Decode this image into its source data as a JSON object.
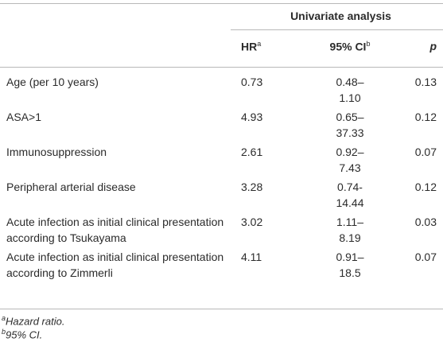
{
  "table": {
    "group_header": "Univariate analysis",
    "columns": [
      {
        "label": "HR",
        "note": "a"
      },
      {
        "label": "95% CI",
        "note": "b"
      },
      {
        "label": "p"
      }
    ],
    "rows": [
      {
        "label": "Age (per 10 years)",
        "hr": "0.73",
        "ci": [
          "0.48–",
          "1.10"
        ],
        "p": "0.13"
      },
      {
        "label": "ASA>1",
        "hr": "4.93",
        "ci": [
          "0.65–",
          "37.33"
        ],
        "p": "0.12"
      },
      {
        "label": "Immunosuppression",
        "hr": "2.61",
        "ci": [
          "0.92–",
          "7.43"
        ],
        "p": "0.07"
      },
      {
        "label": "Peripheral arterial disease",
        "hr": "3.28",
        "ci": [
          "0.74-",
          "14.44"
        ],
        "p": "0.12"
      },
      {
        "label": "Acute infection as initial clinical presentation according to Tsukayama",
        "hr": "3.02",
        "ci": [
          "1.11–",
          "8.19"
        ],
        "p": "0.03"
      },
      {
        "label": "Acute infection as initial clinical presentation according to Zimmerli",
        "hr": "4.11",
        "ci": [
          "0.91–",
          "18.5"
        ],
        "p": "0.07"
      }
    ]
  },
  "footnotes": [
    {
      "mark": "a",
      "text": "Hazard ratio."
    },
    {
      "mark": "b",
      "text": "95% CI."
    }
  ]
}
